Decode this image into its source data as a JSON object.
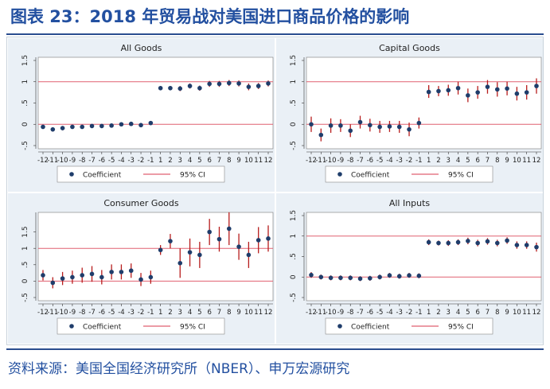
{
  "title": "图表 23：2018 年贸易战对美国进口商品价格的影响",
  "source": "资料来源：美国全国经济研究所（NBER）、申万宏源研究",
  "colors": {
    "marker": "#1f3d6b",
    "ci": "#b71c1c",
    "refline": "#e06070",
    "bg": "#eaf0f6"
  },
  "chart_data": [
    {
      "type": "scatter",
      "title": "All Goods",
      "ylim": [
        -0.5,
        1.5
      ],
      "yticks": [
        "-.5",
        "0",
        ".5",
        "1",
        "1.5"
      ],
      "ytick_values": [
        -0.5,
        0,
        0.5,
        1,
        1.5
      ],
      "x": [
        "-12",
        "-11",
        "-10",
        "-9",
        "-8",
        "-7",
        "-6",
        "-5",
        "-4",
        "-3",
        "-2",
        "-1",
        "1",
        "2",
        "3",
        "4",
        "5",
        "6",
        "7",
        "8",
        "9",
        "10",
        "11",
        "12"
      ],
      "reference_lines": [
        0,
        1
      ],
      "series": [
        {
          "name": "Coefficient",
          "values": [
            -0.06,
            -0.12,
            -0.09,
            -0.06,
            -0.06,
            -0.04,
            -0.04,
            -0.03,
            0.0,
            0.01,
            -0.02,
            0.03,
            0.85,
            0.85,
            0.84,
            0.9,
            0.85,
            0.95,
            0.95,
            0.97,
            0.96,
            0.88,
            0.9,
            0.96
          ]
        },
        {
          "name": "95% CI",
          "lower": [
            -0.1,
            -0.17,
            -0.14,
            -0.1,
            -0.1,
            -0.08,
            -0.08,
            -0.07,
            -0.04,
            -0.03,
            -0.07,
            -0.01,
            0.8,
            0.8,
            0.78,
            0.84,
            0.79,
            0.88,
            0.88,
            0.9,
            0.89,
            0.8,
            0.83,
            0.89
          ],
          "upper": [
            -0.02,
            -0.07,
            -0.04,
            -0.02,
            -0.02,
            0.0,
            0.0,
            0.01,
            0.04,
            0.05,
            0.03,
            0.07,
            0.9,
            0.9,
            0.9,
            0.96,
            0.91,
            1.02,
            1.02,
            1.04,
            1.03,
            0.96,
            0.97,
            1.03
          ]
        }
      ],
      "legend": [
        "Coefficient",
        "95% CI"
      ]
    },
    {
      "type": "scatter",
      "title": "Capital Goods",
      "ylim": [
        -0.5,
        1.5
      ],
      "yticks": [
        "-.5",
        "0",
        ".5",
        "1",
        "1.5"
      ],
      "ytick_values": [
        -0.5,
        0,
        0.5,
        1,
        1.5
      ],
      "x": [
        "-12",
        "-11",
        "-10",
        "-9",
        "-8",
        "-7",
        "-6",
        "-5",
        "-4",
        "-3",
        "-2",
        "-1",
        "1",
        "2",
        "3",
        "4",
        "5",
        "6",
        "7",
        "8",
        "9",
        "10",
        "11",
        "12"
      ],
      "reference_lines": [
        0,
        1
      ],
      "series": [
        {
          "name": "Coefficient",
          "values": [
            0.0,
            -0.25,
            -0.03,
            -0.03,
            -0.15,
            0.05,
            -0.02,
            -0.06,
            -0.05,
            -0.06,
            -0.12,
            0.03,
            0.76,
            0.78,
            0.8,
            0.85,
            0.68,
            0.75,
            0.88,
            0.82,
            0.84,
            0.72,
            0.75,
            0.9
          ]
        },
        {
          "name": "95% CI",
          "lower": [
            -0.18,
            -0.4,
            -0.2,
            -0.18,
            -0.3,
            -0.1,
            -0.17,
            -0.2,
            -0.18,
            -0.2,
            -0.28,
            -0.1,
            0.62,
            0.66,
            0.67,
            0.7,
            0.52,
            0.6,
            0.72,
            0.65,
            0.68,
            0.56,
            0.58,
            0.72
          ],
          "upper": [
            0.18,
            -0.1,
            0.14,
            0.12,
            0.0,
            0.2,
            0.13,
            0.08,
            0.08,
            0.08,
            0.04,
            0.16,
            0.92,
            0.9,
            0.93,
            1.0,
            0.84,
            0.9,
            1.04,
            0.99,
            1.0,
            0.88,
            0.92,
            1.08
          ]
        }
      ],
      "legend": [
        "Coefficient",
        "95% CI"
      ]
    },
    {
      "type": "scatter",
      "title": "Consumer Goods",
      "ylim": [
        -0.5,
        2.0
      ],
      "yticks": [
        "-.5",
        "0",
        ".5",
        "1",
        "1.5"
      ],
      "ytick_values": [
        -0.5,
        0,
        0.5,
        1,
        1.5
      ],
      "x": [
        "-12",
        "-11",
        "-10",
        "-9",
        "-8",
        "-7",
        "-6",
        "-5",
        "-4",
        "-3",
        "-2",
        "-1",
        "1",
        "2",
        "3",
        "4",
        "5",
        "6",
        "7",
        "8",
        "9",
        "10",
        "11",
        "12"
      ],
      "reference_lines": [
        0,
        1
      ],
      "series": [
        {
          "name": "Coefficient",
          "values": [
            0.18,
            -0.05,
            0.08,
            0.12,
            0.18,
            0.22,
            0.12,
            0.28,
            0.28,
            0.32,
            0.05,
            0.12,
            0.95,
            1.22,
            0.55,
            0.88,
            0.8,
            1.5,
            1.28,
            1.6,
            1.05,
            0.8,
            1.25,
            1.3
          ]
        },
        {
          "name": "95% CI",
          "lower": [
            0.02,
            -0.22,
            -0.12,
            -0.08,
            -0.05,
            -0.02,
            -0.1,
            0.05,
            0.05,
            0.1,
            -0.15,
            -0.08,
            0.8,
            1.0,
            0.1,
            0.45,
            0.4,
            1.1,
            0.9,
            1.1,
            0.65,
            0.4,
            0.85,
            0.9
          ],
          "upper": [
            0.34,
            0.12,
            0.28,
            0.32,
            0.41,
            0.46,
            0.34,
            0.51,
            0.51,
            0.54,
            0.25,
            0.32,
            1.1,
            1.44,
            1.0,
            1.3,
            1.2,
            1.9,
            1.66,
            2.1,
            1.45,
            1.2,
            1.65,
            1.7
          ]
        }
      ],
      "legend": [
        "Coefficient",
        "95% CI"
      ]
    },
    {
      "type": "scatter",
      "title": "All Inputs",
      "ylim": [
        -0.5,
        1.5
      ],
      "yticks": [
        "-.5",
        "0",
        ".5",
        "1",
        "1.5"
      ],
      "ytick_values": [
        -0.5,
        0,
        0.5,
        1,
        1.5
      ],
      "x": [
        "-12",
        "-11",
        "-10",
        "-9",
        "-8",
        "-7",
        "-6",
        "-5",
        "-4",
        "-3",
        "-2",
        "-1",
        "1",
        "2",
        "3",
        "4",
        "5",
        "6",
        "7",
        "8",
        "9",
        "10",
        "11",
        "12"
      ],
      "reference_lines": [
        0,
        1
      ],
      "series": [
        {
          "name": "Coefficient",
          "values": [
            0.05,
            0.0,
            -0.02,
            -0.02,
            -0.02,
            -0.04,
            -0.03,
            0.0,
            0.04,
            0.02,
            0.04,
            0.03,
            0.85,
            0.83,
            0.83,
            0.85,
            0.88,
            0.83,
            0.87,
            0.83,
            0.89,
            0.78,
            0.78,
            0.73
          ]
        },
        {
          "name": "95% CI",
          "lower": [
            -0.02,
            -0.06,
            -0.08,
            -0.08,
            -0.08,
            -0.1,
            -0.09,
            -0.06,
            -0.02,
            -0.04,
            -0.02,
            -0.03,
            0.78,
            0.77,
            0.76,
            0.78,
            0.8,
            0.75,
            0.79,
            0.75,
            0.81,
            0.69,
            0.69,
            0.62
          ],
          "upper": [
            0.12,
            0.06,
            0.04,
            0.04,
            0.04,
            0.02,
            0.03,
            0.06,
            0.1,
            0.08,
            0.1,
            0.09,
            0.92,
            0.89,
            0.9,
            0.92,
            0.96,
            0.91,
            0.95,
            0.91,
            0.97,
            0.87,
            0.87,
            0.84
          ]
        }
      ],
      "legend": [
        "Coefficient",
        "95% CI"
      ]
    }
  ]
}
